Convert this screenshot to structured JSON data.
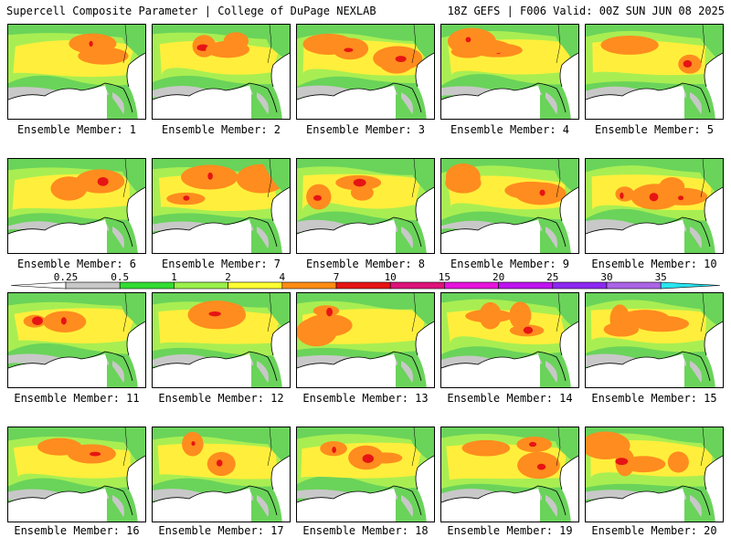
{
  "header": {
    "title_left": "Supercell Composite Parameter | College of DuPage NEXLAB",
    "title_right": "18Z GEFS | F006 Valid: 00Z SUN JUN 08 2025"
  },
  "legend": {
    "ticks": [
      "0.25",
      "0.5",
      "1",
      "2",
      "4",
      "7",
      "10",
      "15",
      "20",
      "25",
      "30",
      "35"
    ],
    "colors": [
      "#ffffff",
      "#c8c8c8",
      "#32dc32",
      "#9bf04b",
      "#ffff32",
      "#ff8c14",
      "#e61414",
      "#dc1478",
      "#e614dc",
      "#be14f0",
      "#8c28f0",
      "#aa64e6",
      "#28e6f0"
    ]
  },
  "colors": {
    "land_base": "#6ad35a",
    "low": "#a8ee52",
    "moderate": "#ffef3c",
    "high": "#ff8c1e",
    "very_high": "#e61414",
    "minimal": "#c8c8c8",
    "water": "#ffffff"
  },
  "panels": [
    {
      "label": "Ensemble Member: 1"
    },
    {
      "label": "Ensemble Member: 2"
    },
    {
      "label": "Ensemble Member: 3"
    },
    {
      "label": "Ensemble Member: 4"
    },
    {
      "label": "Ensemble Member: 5"
    },
    {
      "label": "Ensemble Member: 6"
    },
    {
      "label": "Ensemble Member: 7"
    },
    {
      "label": "Ensemble Member: 8"
    },
    {
      "label": "Ensemble Member: 9"
    },
    {
      "label": "Ensemble Member: 10"
    },
    {
      "label": "Ensemble Member: 11"
    },
    {
      "label": "Ensemble Member: 12"
    },
    {
      "label": "Ensemble Member: 13"
    },
    {
      "label": "Ensemble Member: 14"
    },
    {
      "label": "Ensemble Member: 15"
    },
    {
      "label": "Ensemble Member: 16"
    },
    {
      "label": "Ensemble Member: 17"
    },
    {
      "label": "Ensemble Member: 18"
    },
    {
      "label": "Ensemble Member: 19"
    },
    {
      "label": "Ensemble Member: 20"
    }
  ]
}
